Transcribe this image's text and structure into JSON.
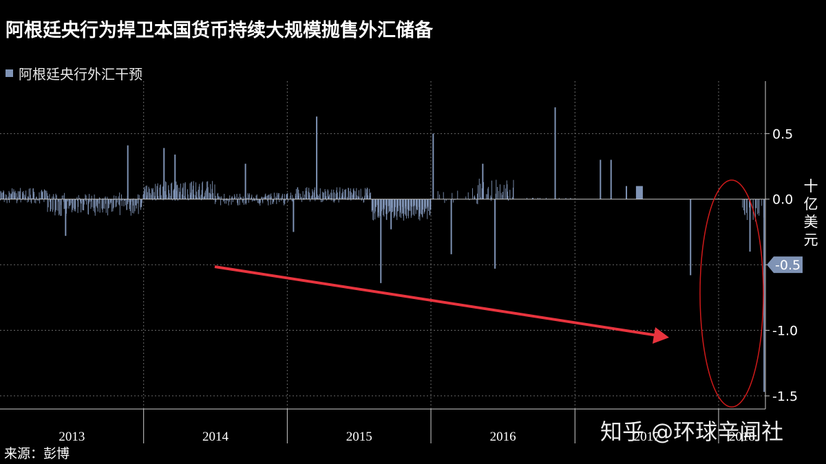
{
  "chart_data": {
    "type": "bar",
    "title": "阿根廷央行为捍卫本国货币持续大规模抛售外汇储备",
    "series": [
      {
        "name": "阿根廷央行外汇干预"
      }
    ],
    "ylabel": "十亿美元",
    "ylim": [
      -1.6,
      0.9
    ],
    "yticks": [
      "0.5",
      "0.0",
      "-0.5",
      "-1.0",
      "-1.5"
    ],
    "ytick_values": [
      0.5,
      0.0,
      -0.5,
      -1.0,
      -1.5
    ],
    "highlight_label": "-0.5",
    "highlight_value": -0.5,
    "xlim": [
      "2013-01-01",
      "2018-04-30"
    ],
    "year_labels": [
      "2013",
      "2014",
      "2015",
      "2016",
      "2017",
      "2018"
    ],
    "grid": true,
    "notable_values": [
      {
        "date": "2013-06-15",
        "value": -0.28
      },
      {
        "date": "2013-11-20",
        "value": 0.41
      },
      {
        "date": "2014-02-20",
        "value": 0.39
      },
      {
        "date": "2014-03-20",
        "value": 0.34
      },
      {
        "date": "2014-09-15",
        "value": 0.27
      },
      {
        "date": "2015-01-15",
        "value": -0.25
      },
      {
        "date": "2015-03-15",
        "value": 0.63
      },
      {
        "date": "2015-08-25",
        "value": -0.64
      },
      {
        "date": "2015-09-20",
        "value": -0.23
      },
      {
        "date": "2016-01-05",
        "value": 0.5
      },
      {
        "date": "2016-02-20",
        "value": -0.42
      },
      {
        "date": "2016-05-10",
        "value": 0.27
      },
      {
        "date": "2016-06-10",
        "value": -0.53
      },
      {
        "date": "2016-11-10",
        "value": 0.7
      },
      {
        "date": "2017-03-05",
        "value": 0.3
      },
      {
        "date": "2017-04-01",
        "value": 0.3
      },
      {
        "date": "2017-05-10",
        "value": 0.1
      },
      {
        "date": "2017-10-20",
        "value": -0.58
      },
      {
        "date": "2018-03-20",
        "value": -0.4
      },
      {
        "date": "2018-04-25",
        "value": -1.47
      }
    ]
  },
  "source_text": "来源：彭博",
  "watermark_text": "知乎 @环球辛闻社",
  "colors": {
    "bar": "#7f93b5",
    "arrow": "#e8343e",
    "ellipse": "#d11a1a",
    "grid": "#6b6b6b"
  }
}
